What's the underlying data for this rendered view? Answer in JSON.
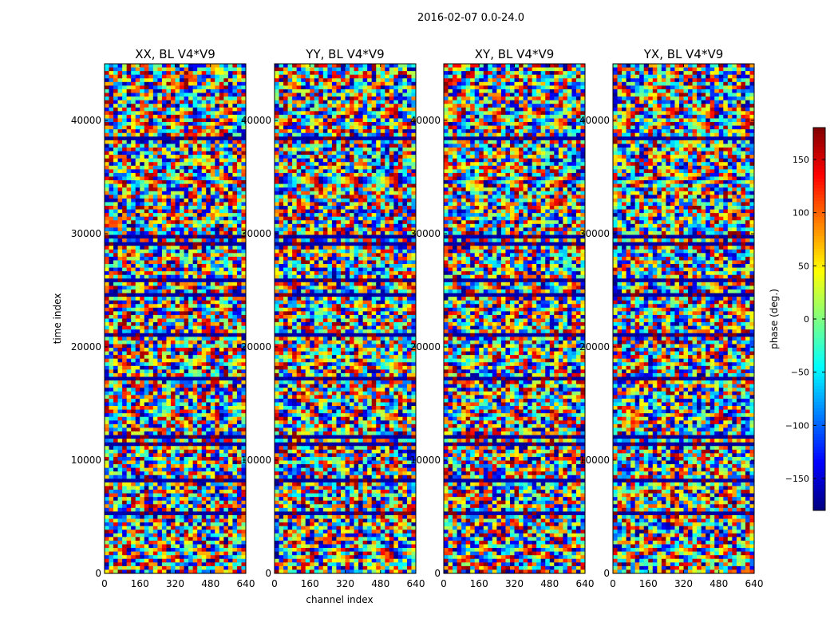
{
  "figure_title": "2016-02-07 0.0-24.0",
  "colorbar": {
    "label": "phase (deg.)",
    "ticks": [
      150,
      100,
      50,
      0,
      -50,
      -100,
      -150
    ],
    "tick_labels": [
      "150",
      "100",
      "50",
      "0",
      "−50",
      "−100",
      "−150"
    ],
    "range": [
      -180,
      180
    ],
    "colormap": "jet"
  },
  "chart_data": [
    {
      "type": "heatmap",
      "title": "XX, BL V4*V9",
      "xlabel": "",
      "ylabel": "time index",
      "xlim": [
        0,
        640
      ],
      "ylim": [
        0,
        45000
      ],
      "xticks": [
        0,
        160,
        320,
        480,
        640
      ],
      "yticks": [
        0,
        10000,
        20000,
        30000,
        40000
      ]
    },
    {
      "type": "heatmap",
      "title": "YY, BL V4*V9",
      "xlabel": "channel index",
      "ylabel": "",
      "xlim": [
        0,
        640
      ],
      "ylim": [
        0,
        45000
      ],
      "xticks": [
        0,
        160,
        320,
        480,
        640
      ],
      "yticks": [
        0,
        10000,
        20000,
        30000,
        40000
      ]
    },
    {
      "type": "heatmap",
      "title": "XY, BL V4*V9",
      "xlabel": "",
      "ylabel": "",
      "xlim": [
        0,
        640
      ],
      "ylim": [
        0,
        45000
      ],
      "xticks": [
        0,
        160,
        320,
        480,
        640
      ],
      "yticks": [
        0,
        10000,
        20000,
        30000,
        40000
      ]
    },
    {
      "type": "heatmap",
      "title": "YX, BL V4*V9",
      "xlabel": "",
      "ylabel": "",
      "xlim": [
        0,
        640
      ],
      "ylim": [
        0,
        45000
      ],
      "xticks": [
        0,
        160,
        320,
        480,
        640
      ],
      "yticks": [
        0,
        10000,
        20000,
        30000,
        40000
      ]
    }
  ]
}
